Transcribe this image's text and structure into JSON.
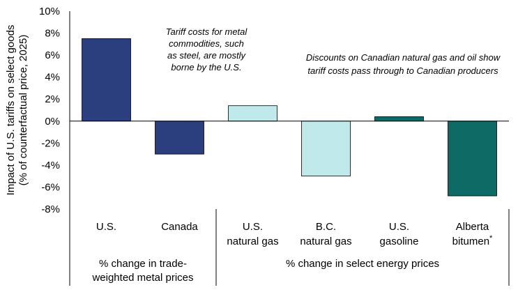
{
  "chart_data": {
    "type": "bar",
    "ylabel_line1": "Impact of U.S. tariffs on select goods",
    "ylabel_line2": "(% of counterfactual price, 2025)",
    "ylim": [
      -8,
      10
    ],
    "yticks": [
      "-8%",
      "-6%",
      "-4%",
      "-2%",
      "0%",
      "2%",
      "4%",
      "6%",
      "8%",
      "10%"
    ],
    "grid": false,
    "categories": [
      {
        "line1": "U.S.",
        "line2": "",
        "value": 7.5,
        "color": "#2b3f7e"
      },
      {
        "line1": "Canada",
        "line2": "",
        "value": -3.0,
        "color": "#2b3f7e"
      },
      {
        "line1": "U.S.",
        "line2": "natural gas",
        "value": 1.4,
        "color": "#bfe9ea"
      },
      {
        "line1": "B.C.",
        "line2": "natural gas",
        "value": -5.0,
        "color": "#bfe9ea"
      },
      {
        "line1": "U.S.",
        "line2": "gasoline",
        "value": 0.4,
        "color": "#0e6a64"
      },
      {
        "line1": "Alberta",
        "line2": "bitumen",
        "sup": "*",
        "value": -6.8,
        "color": "#0e6a64"
      }
    ],
    "groups": [
      {
        "line1": "% change in trade-",
        "line2": "weighted metal prices"
      },
      {
        "line1": "% change in select energy prices",
        "line2": ""
      }
    ],
    "annotations": [
      {
        "lines": [
          "Tariff costs for metal",
          "commodities, such",
          "as steel, are mostly",
          "borne by the U.S."
        ]
      },
      {
        "lines": [
          "Discounts on Canadian natural gas and oil show",
          "tariff costs pass through to Canadian producers"
        ]
      }
    ]
  }
}
